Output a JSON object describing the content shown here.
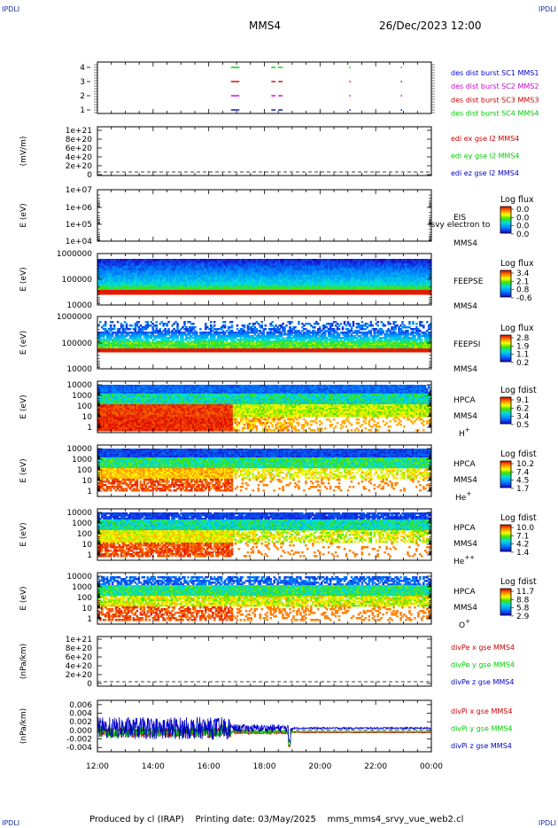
{
  "corners": {
    "tl": "IPDLI",
    "tr": "IPDLI",
    "bl": "IPDLI",
    "br": "IPDLI"
  },
  "header": {
    "left": "MMS4",
    "right": "26/Dec/2023 12:00"
  },
  "footer": {
    "text": "Produced by cl (IRAP)    Printing date: 03/May/2025    mms_mms4_srvy_vue_web2.cl"
  },
  "colors": {
    "blue": "#0000cc",
    "magenta": "#cc00cc",
    "red": "#cc0000",
    "green": "#00cc00",
    "cblue": "#1a2fa0"
  },
  "chart_data": {
    "type": "multi-panel time series",
    "x_range": [
      "12:00",
      "00:00"
    ],
    "x_ticks": [
      "12:00",
      "14:00",
      "16:00",
      "18:00",
      "20:00",
      "22:00",
      "00:00"
    ],
    "panels": [
      {
        "id": "burst",
        "yticks": [
          "4",
          "3",
          "2",
          "1"
        ],
        "legend": [
          {
            "text": "des dist burst SC1 MMS1",
            "color": "#0000cc"
          },
          {
            "text": "des dist burst SC2 MMS2",
            "color": "#cc00cc"
          },
          {
            "text": "des dist burst SC3 MMS3",
            "color": "#cc0000"
          },
          {
            "text": "des dist burst SC4 MMS4",
            "color": "#00cc00"
          }
        ],
        "bursts": [
          [
            16.8,
            17.1
          ],
          [
            18.25,
            18.4
          ],
          [
            18.5,
            18.65
          ],
          [
            21.05,
            21.1
          ],
          [
            22.9,
            22.95
          ]
        ]
      },
      {
        "id": "edi",
        "ylabel": "(mV/m)",
        "yticks": [
          "1e+21",
          "8e+20",
          "6e+20",
          "4e+20",
          "2e+20",
          "0"
        ],
        "legend": [
          {
            "text": "edi ex gse l2 MMS4",
            "color": "#cc0000"
          },
          {
            "text": "edi ey gse l2 MMS4",
            "color": "#00cc00"
          },
          {
            "text": "edi ez gse l2 MMS4",
            "color": "#0000cc"
          }
        ]
      },
      {
        "id": "eis",
        "ylabel": "E (eV)",
        "yticks": [
          "1e+07",
          "1e+06",
          "1e+05",
          "1e+04"
        ],
        "label": "EIS",
        "overlay": "lsvy electron to",
        "sc": "MMS4",
        "cb_title": "Log flux",
        "cb_values": [
          "0.0",
          "0.0",
          "0.0",
          "0.0"
        ]
      },
      {
        "id": "feepse",
        "ylabel": "E (eV)",
        "yticks": [
          "1000000",
          "100000",
          "10000"
        ],
        "label": "FEEPSE",
        "sc": "MMS4",
        "cb_title": "Log flux",
        "cb_values": [
          "3.4",
          "2.1",
          "0.8",
          "-0.6"
        ]
      },
      {
        "id": "feepsi",
        "ylabel": "E (eV)",
        "yticks": [
          "1000000",
          "100000",
          "10000"
        ],
        "label": "FEEPSI",
        "sc": "MMS4",
        "cb_title": "Log flux",
        "cb_values": [
          "2.8",
          "1.9",
          "1.1",
          "0.2"
        ]
      },
      {
        "id": "hpca_h",
        "ylabel": "E (eV)",
        "yticks": [
          "10000",
          "1000",
          "100",
          "10",
          "1"
        ],
        "label": "HPCA",
        "sc": "MMS4",
        "species": "H",
        "charge": "+",
        "cb_title": "Log fdist",
        "cb_values": [
          "9.1",
          "6.2",
          "3.4",
          "0.5"
        ]
      },
      {
        "id": "hpca_he",
        "ylabel": "E (eV)",
        "yticks": [
          "10000",
          "1000",
          "100",
          "10",
          "1"
        ],
        "label": "HPCA",
        "sc": "MMS4",
        "species": "He",
        "charge": "+",
        "cb_title": "Log fdist",
        "cb_values": [
          "10.2",
          "7.4",
          "4.5",
          "1.7"
        ]
      },
      {
        "id": "hpca_hepp",
        "ylabel": "E (eV)",
        "yticks": [
          "10000",
          "1000",
          "100",
          "10",
          "1"
        ],
        "label": "HPCA",
        "sc": "MMS4",
        "species": "He",
        "charge": "++",
        "cb_title": "Log fdist",
        "cb_values": [
          "10.0",
          "7.1",
          "4.2",
          "1.4"
        ]
      },
      {
        "id": "hpca_o",
        "ylabel": "E (eV)",
        "yticks": [
          "10000",
          "1000",
          "100",
          "10",
          "1"
        ],
        "label": "HPCA",
        "sc": "MMS4",
        "species": "O",
        "charge": "+",
        "cb_title": "Log fdist",
        "cb_values": [
          "11.7",
          "8.8",
          "5.8",
          "2.9"
        ]
      },
      {
        "id": "divpe",
        "ylabel": "(nPa/km)",
        "yticks": [
          "1e+21",
          "8e+20",
          "6e+20",
          "4e+20",
          "2e+20",
          "0"
        ],
        "legend": [
          {
            "text": "divPe x gse MMS4",
            "color": "#cc0000"
          },
          {
            "text": "divPe y gse MMS4",
            "color": "#00cc00"
          },
          {
            "text": "divPe z gse MMS4",
            "color": "#0000cc"
          }
        ]
      },
      {
        "id": "divpi",
        "ylabel": "(nPa/km)",
        "yticks": [
          "0.006",
          "0.004",
          "0.002",
          "0.000",
          "-0.002",
          "-0.004"
        ],
        "ylim": [
          -0.005,
          0.007
        ],
        "legend": [
          {
            "text": "divPi x gse MMS4",
            "color": "#cc0000"
          },
          {
            "text": "divPi y gse MMS4",
            "color": "#00cc00"
          },
          {
            "text": "divPi z gse MMS4",
            "color": "#0000cc"
          }
        ]
      }
    ]
  }
}
